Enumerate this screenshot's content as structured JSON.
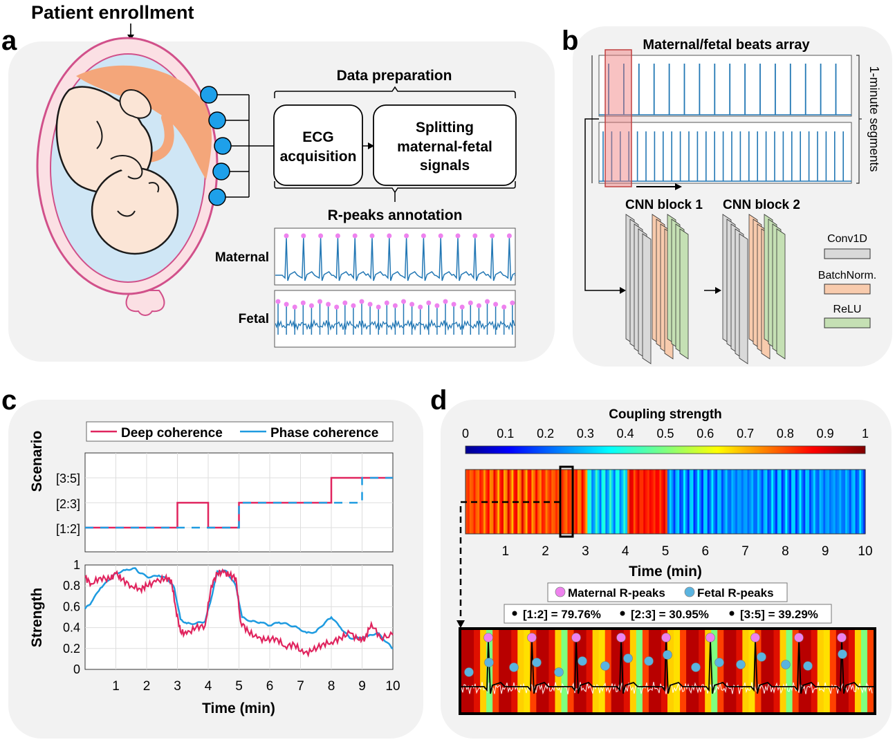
{
  "panel_a": {
    "letter": "a",
    "header": "Patient enrollment",
    "data_prep": "Data preparation",
    "ecg_line1": "ECG",
    "ecg_line2": "acquisition",
    "split_line1": "Splitting",
    "split_line2": "maternal-fetal",
    "split_line3": "signals",
    "rpeaks_title": "R-peaks annotation",
    "maternal_label": "Maternal",
    "fetal_label": "Fetal"
  },
  "panel_b": {
    "letter": "b",
    "title": "Maternal/fetal beats array",
    "side_label": "1-minute segments",
    "cnn1": "CNN  block 1",
    "cnn2": "CNN  block 2",
    "legend": [
      "Conv1D",
      "BatchNorm.",
      "ReLU"
    ],
    "top_beats": 16,
    "bottom_beats": 29
  },
  "panel_c": {
    "letter": "c",
    "legend": [
      "Deep coherence",
      "Phase coherence"
    ],
    "scenario_label": "Scenario",
    "scenario_ticks": [
      "[3:5]",
      "[2:3]",
      "[1:2]"
    ],
    "strength_label": "Strength",
    "strength_ticks": [
      "1",
      "0.8",
      "0.6",
      "0.4",
      "0.2",
      "0"
    ],
    "x_ticks": [
      "1",
      "2",
      "3",
      "4",
      "5",
      "6",
      "7",
      "8",
      "9",
      "10"
    ],
    "xlabel": "Time (min)"
  },
  "panel_d": {
    "letter": "d",
    "colorbar_title": "Coupling strength",
    "colorbar_ticks": [
      "0",
      "0.1",
      "0.2",
      "0.3",
      "0.4",
      "0.5",
      "0.6",
      "0.7",
      "0.8",
      "0.9",
      "1"
    ],
    "x_ticks": [
      "1",
      "2",
      "3",
      "4",
      "5",
      "6",
      "7",
      "8",
      "9",
      "10"
    ],
    "xlabel": "Time (min)",
    "legend": [
      "Maternal R-peaks",
      "Fetal R-peaks"
    ],
    "stats": [
      "[1:2] = 79.76%",
      "[2:3] = 30.95%",
      "[3:5] = 39.29%"
    ]
  },
  "colors": {
    "deep": "#e0245e",
    "phase": "#1e9be0",
    "ecg": "#2277b4",
    "maternal_peak": "#ee82ee",
    "fetal_peak": "#5ab4e0",
    "fetus_skin": "#fbe5d6",
    "placenta": "#f4a67a",
    "amniotic": "#cfe6f5",
    "uterus": "#d1508a",
    "electrode": "#1ea0ea",
    "panel_bg": "#f2f2f2",
    "conv": "#d9d9d9",
    "bn": "#f8cbad",
    "relu": "#c5e0b4"
  },
  "chart_data": [
    {
      "type": "line",
      "title": "Scenario",
      "xlabel": "Time (min)",
      "ylabel": "Scenario",
      "xlim": [
        0,
        10
      ],
      "categories_y": [
        "[1:2]",
        "[2:3]",
        "[3:5]"
      ],
      "series": [
        {
          "name": "Deep coherence",
          "x": [
            0,
            3,
            3,
            4,
            4,
            5,
            5,
            8,
            8,
            10
          ],
          "y": [
            0,
            0,
            1,
            1,
            0,
            0,
            1,
            1,
            2,
            2
          ]
        },
        {
          "name": "Phase coherence",
          "x": [
            0,
            5,
            5,
            9,
            9,
            10
          ],
          "y": [
            0,
            0,
            1,
            1,
            2,
            2
          ]
        }
      ]
    },
    {
      "type": "line",
      "title": "Strength",
      "xlabel": "Time (min)",
      "ylabel": "Strength",
      "xlim": [
        0,
        10
      ],
      "ylim": [
        0,
        1
      ],
      "series": [
        {
          "name": "Deep coherence",
          "x": [
            0,
            0.2,
            0.5,
            0.8,
            1.0,
            1.2,
            1.5,
            1.8,
            2.0,
            2.3,
            2.6,
            2.8,
            2.95,
            3.1,
            3.3,
            3.6,
            3.9,
            4.1,
            4.3,
            4.5,
            4.7,
            4.9,
            5.05,
            5.3,
            5.6,
            5.9,
            6.2,
            6.5,
            6.8,
            7.1,
            7.4,
            7.7,
            8.0,
            8.3,
            8.6,
            8.9,
            9.1,
            9.3,
            9.6,
            10
          ],
          "y": [
            0.88,
            0.82,
            0.88,
            0.86,
            0.92,
            0.86,
            0.8,
            0.77,
            0.8,
            0.84,
            0.87,
            0.86,
            0.58,
            0.36,
            0.34,
            0.4,
            0.42,
            0.8,
            0.92,
            0.93,
            0.9,
            0.88,
            0.46,
            0.36,
            0.3,
            0.28,
            0.3,
            0.22,
            0.24,
            0.15,
            0.18,
            0.24,
            0.26,
            0.3,
            0.35,
            0.28,
            0.3,
            0.44,
            0.3,
            0.33
          ]
        },
        {
          "name": "Phase coherence",
          "x": [
            0,
            0.2,
            0.5,
            0.8,
            1.0,
            1.3,
            1.6,
            1.8,
            2.1,
            2.4,
            2.7,
            2.9,
            3.1,
            3.3,
            3.6,
            3.9,
            4.1,
            4.3,
            4.6,
            4.9,
            5.1,
            5.4,
            5.7,
            6.0,
            6.3,
            6.6,
            6.9,
            7.2,
            7.5,
            7.8,
            8.0,
            8.3,
            8.6,
            8.9,
            9.2,
            9.5,
            9.8,
            10
          ],
          "y": [
            0.58,
            0.64,
            0.78,
            0.86,
            0.92,
            0.95,
            0.97,
            0.92,
            0.88,
            0.9,
            0.86,
            0.78,
            0.48,
            0.44,
            0.44,
            0.46,
            0.68,
            0.94,
            0.94,
            0.8,
            0.5,
            0.46,
            0.45,
            0.42,
            0.45,
            0.43,
            0.4,
            0.35,
            0.36,
            0.45,
            0.5,
            0.4,
            0.3,
            0.3,
            0.32,
            0.35,
            0.26,
            0.2
          ]
        }
      ]
    },
    {
      "type": "heatmap",
      "title": "Coupling strength",
      "xlabel": "Time (min)",
      "xlim": [
        0,
        10
      ],
      "clim": [
        0,
        1
      ],
      "segments": [
        {
          "x0": 0,
          "x1": 3,
          "value": 0.8
        },
        {
          "x0": 3,
          "x1": 4,
          "value": 0.32
        },
        {
          "x0": 4,
          "x1": 5,
          "value": 0.85
        },
        {
          "x0": 5,
          "x1": 10,
          "value": 0.25
        }
      ]
    }
  ]
}
